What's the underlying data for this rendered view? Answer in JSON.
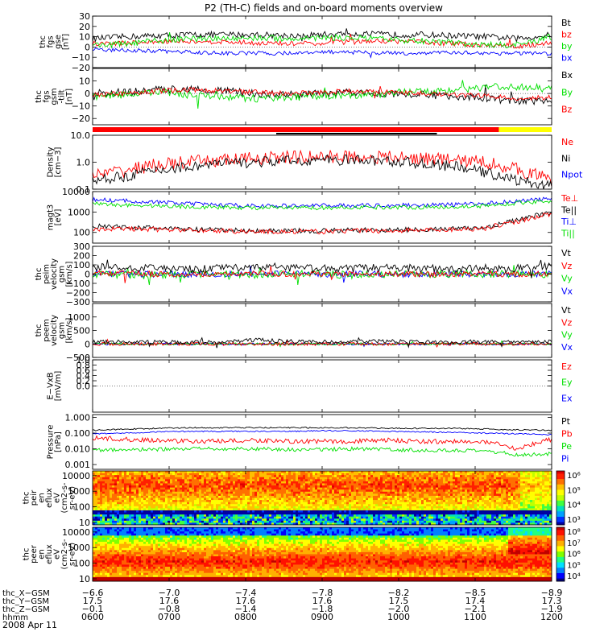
{
  "title": "P2 (TH-C) fields and on-board moments overview",
  "colors": {
    "black": "#000000",
    "red": "#ff0000",
    "green": "#00e000",
    "blue": "#0000ff",
    "yellow": "#ffff00"
  },
  "chart_data": [
    {
      "type": "line",
      "id": "p1",
      "ylabel_lines": [
        "thc",
        "fgs",
        "gse",
        "[nT]"
      ],
      "ylim": [
        -20,
        30
      ],
      "log": false,
      "ticks": [
        30,
        20,
        10,
        0,
        -10,
        -20
      ],
      "ticks_labels": [
        "30",
        "20",
        "10",
        "0",
        "−10",
        "−20"
      ],
      "legend": [
        {
          "name": "Bt",
          "color": "black"
        },
        {
          "name": "bz",
          "color": "red"
        },
        {
          "name": "by",
          "color": "green"
        },
        {
          "name": "bx",
          "color": "blue"
        }
      ],
      "series": [
        {
          "name": "Bt",
          "color": "black",
          "base": [
            8,
            10,
            11,
            12,
            12,
            12,
            11,
            12,
            13,
            12,
            12,
            11,
            10,
            8,
            12
          ],
          "noise": 3
        },
        {
          "name": "bz",
          "color": "red",
          "base": [
            3,
            4,
            5,
            6,
            5,
            4,
            3,
            4,
            5,
            6,
            5,
            3,
            2,
            1,
            4
          ],
          "noise": 2.5
        },
        {
          "name": "by",
          "color": "green",
          "base": [
            2,
            3,
            6,
            8,
            8,
            9,
            8,
            9,
            9,
            7,
            6,
            4,
            2,
            2,
            10
          ],
          "noise": 3
        },
        {
          "name": "bx",
          "color": "blue",
          "base": [
            -3,
            -3,
            -4,
            -5,
            -6,
            -6,
            -6,
            -5,
            -5,
            -6,
            -6,
            -5,
            -6,
            -6,
            -7
          ],
          "noise": 2
        }
      ]
    },
    {
      "type": "line",
      "id": "p2",
      "ylabel_lines": [
        "thc",
        "fgs",
        "gsm",
        "-tilt",
        "[nT]"
      ],
      "ylim": [
        -25,
        20
      ],
      "log": false,
      "ticks": [
        10,
        0,
        -10,
        -20
      ],
      "ticks_labels": [
        "10",
        "0",
        "−10",
        "−20"
      ],
      "legend": [
        {
          "name": "Bx",
          "color": "black"
        },
        {
          "name": "By",
          "color": "green"
        },
        {
          "name": "Bz",
          "color": "red"
        }
      ],
      "series": [
        {
          "name": "Bx",
          "color": "black",
          "base": [
            0,
            1,
            3,
            4,
            2,
            0,
            -1,
            0,
            1,
            0,
            -1,
            -2,
            -4,
            -6,
            -6
          ],
          "noise": 3
        },
        {
          "name": "By",
          "color": "green",
          "base": [
            -2,
            -1,
            1,
            -1,
            -3,
            -4,
            -3,
            -2,
            -1,
            0,
            2,
            3,
            5,
            5,
            6
          ],
          "noise": 3
        },
        {
          "name": "Bz",
          "color": "red",
          "base": [
            -1,
            0,
            2,
            3,
            2,
            1,
            0,
            1,
            2,
            1,
            0,
            -1,
            -2,
            -4,
            -3
          ],
          "noise": 2
        }
      ]
    },
    {
      "type": "line",
      "id": "p3",
      "ylabel_lines": [
        "Density",
        "[cm−3]"
      ],
      "ylim": [
        0.1,
        10
      ],
      "log": true,
      "ticks": [
        10,
        1,
        0.1
      ],
      "ticks_labels": [
        "10.0",
        "1.0",
        "0.1"
      ],
      "legend": [
        {
          "name": "Ne",
          "color": "red"
        },
        {
          "name": "Ni",
          "color": "black"
        },
        {
          "name": "Npot",
          "color": "blue"
        }
      ],
      "series": [
        {
          "name": "Ne",
          "color": "red",
          "base": [
            0.3,
            0.5,
            0.8,
            1.0,
            1.2,
            1.4,
            1.5,
            1.6,
            1.6,
            1.5,
            1.4,
            1.2,
            1.0,
            0.5,
            0.2
          ],
          "noise": 0.25
        },
        {
          "name": "Ni",
          "color": "black",
          "base": [
            0.2,
            0.3,
            0.5,
            0.7,
            0.9,
            1.0,
            1.1,
            1.2,
            1.2,
            1.1,
            0.9,
            0.7,
            0.4,
            0.2,
            0.12
          ],
          "noise": 0.2
        }
      ]
    },
    {
      "type": "line",
      "id": "p4",
      "ylabel_lines": [
        "magt3",
        "[eV]"
      ],
      "ylim": [
        30,
        10000
      ],
      "log": true,
      "ticks": [
        10000,
        1000,
        100
      ],
      "ticks_labels": [
        "10000",
        "1000",
        "100"
      ],
      "legend": [
        {
          "name": "Te⊥",
          "color": "red"
        },
        {
          "name": "Te||",
          "color": "black"
        },
        {
          "name": "Ti⊥",
          "color": "blue"
        },
        {
          "name": "Ti||",
          "color": "green"
        }
      ],
      "series": [
        {
          "name": "Ti⊥",
          "color": "blue",
          "base": [
            4000,
            3500,
            3000,
            2500,
            2200,
            2000,
            2000,
            2100,
            2100,
            2100,
            2200,
            2300,
            2600,
            3500,
            4500
          ],
          "noise": 0.1
        },
        {
          "name": "Ti||",
          "color": "green",
          "base": [
            2500,
            2200,
            2000,
            1800,
            1700,
            1600,
            1600,
            1600,
            1700,
            1700,
            1700,
            1800,
            2000,
            2800,
            3500
          ],
          "noise": 0.1
        },
        {
          "name": "Te||",
          "color": "black",
          "base": [
            200,
            180,
            160,
            140,
            130,
            120,
            120,
            120,
            130,
            130,
            140,
            150,
            170,
            400,
            900
          ],
          "noise": 0.12
        },
        {
          "name": "Te⊥",
          "color": "red",
          "base": [
            150,
            150,
            140,
            130,
            120,
            110,
            110,
            110,
            120,
            120,
            130,
            140,
            160,
            350,
            800
          ],
          "noise": 0.12
        }
      ]
    },
    {
      "type": "line",
      "id": "p5",
      "ylabel_lines": [
        "thc",
        "peim",
        "velocity",
        "gsm",
        "[km/s]"
      ],
      "ylim": [
        -300,
        300
      ],
      "log": false,
      "ticks": [
        300,
        200,
        100,
        0,
        -100,
        -200,
        -300
      ],
      "ticks_labels": [
        "300",
        "200",
        "100",
        "0",
        "−100",
        "−200",
        "−300"
      ],
      "legend": [
        {
          "name": "Vt",
          "color": "black"
        },
        {
          "name": "Vz",
          "color": "red"
        },
        {
          "name": "Vy",
          "color": "green"
        },
        {
          "name": "Vx",
          "color": "blue"
        }
      ],
      "series": [
        {
          "name": "Vx",
          "color": "blue",
          "base": [
            0,
            0,
            0,
            0,
            0,
            0,
            0,
            0,
            0,
            0,
            0,
            0,
            0,
            0,
            0
          ],
          "noise": 35
        },
        {
          "name": "Vy",
          "color": "green",
          "base": [
            0,
            -10,
            -10,
            0,
            0,
            -10,
            0,
            0,
            -10,
            0,
            0,
            0,
            0,
            0,
            0
          ],
          "noise": 40
        },
        {
          "name": "Vz",
          "color": "red",
          "base": [
            10,
            10,
            0,
            0,
            0,
            10,
            0,
            0,
            0,
            0,
            0,
            0,
            0,
            0,
            0
          ],
          "noise": 30
        },
        {
          "name": "Vt",
          "color": "black",
          "base": [
            70,
            80,
            60,
            50,
            60,
            90,
            60,
            60,
            60,
            70,
            60,
            50,
            60,
            60,
            80
          ],
          "noise": 45
        }
      ]
    },
    {
      "type": "line",
      "id": "p6",
      "ylabel_lines": [
        "thc",
        "peem",
        "velocity",
        "gsm",
        "[km/s]"
      ],
      "ylim": [
        -500,
        1500
      ],
      "log": false,
      "ticks": [
        1000,
        500,
        0,
        -500
      ],
      "ticks_labels": [
        "1000",
        "500",
        "0",
        "−500"
      ],
      "legend": [
        {
          "name": "Vt",
          "color": "black"
        },
        {
          "name": "Vz",
          "color": "red"
        },
        {
          "name": "Vy",
          "color": "green"
        },
        {
          "name": "Vx",
          "color": "blue"
        }
      ],
      "series": [
        {
          "name": "Vx",
          "color": "blue",
          "base": [
            0,
            0,
            0,
            0,
            0,
            0,
            0,
            0,
            0,
            0,
            0,
            0,
            0,
            0,
            0
          ],
          "noise": 40
        },
        {
          "name": "Vy",
          "color": "green",
          "base": [
            0,
            0,
            0,
            0,
            0,
            0,
            0,
            0,
            0,
            0,
            0,
            0,
            0,
            0,
            0
          ],
          "noise": 40
        },
        {
          "name": "Vz",
          "color": "red",
          "base": [
            0,
            0,
            0,
            0,
            0,
            0,
            0,
            0,
            0,
            0,
            0,
            0,
            0,
            0,
            0
          ],
          "noise": 60
        },
        {
          "name": "Vt",
          "color": "black",
          "base": [
            80,
            90,
            70,
            60,
            70,
            150,
            100,
            80,
            90,
            100,
            80,
            70,
            90,
            80,
            100
          ],
          "noise": 70
        }
      ]
    },
    {
      "type": "line",
      "id": "p7",
      "ylabel_lines": [
        "E−VxB",
        "[mV/m]"
      ],
      "ylim": [
        -1,
        1
      ],
      "log": false,
      "ticks": [
        1.0,
        0.8,
        0.6,
        0.4,
        0.2,
        0.0
      ],
      "ticks_labels": [
        "1.0",
        "0.8",
        "0.6",
        "0.4",
        "0.2",
        "0.0"
      ],
      "legend": [
        {
          "name": "Ez",
          "color": "red"
        },
        {
          "name": "Ey",
          "color": "green"
        },
        {
          "name": "Ex",
          "color": "blue"
        }
      ],
      "series": []
    },
    {
      "type": "line",
      "id": "p8",
      "ylabel_lines": [
        "Pressure",
        "[nPa]"
      ],
      "ylim": [
        0.0005,
        1.5
      ],
      "log": true,
      "ticks": [
        1,
        0.1,
        0.01,
        0.001
      ],
      "ticks_labels": [
        "1.000",
        "0.100",
        "0.010",
        "0.001"
      ],
      "legend": [
        {
          "name": "Pt",
          "color": "black"
        },
        {
          "name": "Pb",
          "color": "red"
        },
        {
          "name": "Pe",
          "color": "green"
        },
        {
          "name": "Pi",
          "color": "blue"
        }
      ],
      "series": [
        {
          "name": "Pt",
          "color": "black",
          "base": [
            0.15,
            0.18,
            0.2,
            0.22,
            0.22,
            0.22,
            0.22,
            0.22,
            0.22,
            0.2,
            0.2,
            0.2,
            0.18,
            0.16,
            0.15
          ],
          "noise": 0.04
        },
        {
          "name": "Pi",
          "color": "blue",
          "base": [
            0.09,
            0.1,
            0.12,
            0.13,
            0.13,
            0.13,
            0.13,
            0.14,
            0.14,
            0.13,
            0.12,
            0.11,
            0.1,
            0.09,
            0.08
          ],
          "noise": 0.04
        },
        {
          "name": "Pb",
          "color": "red",
          "base": [
            0.05,
            0.04,
            0.035,
            0.03,
            0.03,
            0.035,
            0.03,
            0.03,
            0.03,
            0.035,
            0.03,
            0.03,
            0.025,
            0.008,
            0.04
          ],
          "noise": 0.15
        },
        {
          "name": "Pe",
          "color": "green",
          "base": [
            0.008,
            0.009,
            0.009,
            0.01,
            0.01,
            0.01,
            0.009,
            0.009,
            0.01,
            0.009,
            0.008,
            0.008,
            0.007,
            0.004,
            0.005
          ],
          "noise": 0.12
        }
      ]
    },
    {
      "type": "heatmap",
      "id": "p9",
      "ylabel_lines": [
        "thc",
        "peir",
        "en",
        "eflux",
        "eV",
        "(cm2-s-",
        "sr-eV)"
      ],
      "ticks": [
        10000,
        1000,
        100,
        10
      ],
      "ticks_labels": [
        "10000",
        "1000",
        "100",
        "10"
      ],
      "ylim": [
        7,
        20000
      ],
      "colorbar_labels": [
        "10⁶",
        "10⁵",
        "10⁴",
        "10³"
      ],
      "colorbar_exponents": [
        6,
        5,
        4,
        3
      ]
    },
    {
      "type": "heatmap",
      "id": "p10",
      "ylabel_lines": [
        "thc",
        "peer",
        "en",
        "eflux",
        "eV",
        "(cm2-s-",
        "sr-eV)"
      ],
      "ticks": [
        10000,
        1000,
        100,
        10
      ],
      "ticks_labels": [
        "10000",
        "1000",
        "100",
        "10"
      ],
      "ylim": [
        7,
        20000
      ],
      "colorbar_labels": [
        "10⁸",
        "10⁷",
        "10⁶",
        "10⁵",
        "10⁴"
      ],
      "colorbar_exponents": [
        8,
        7,
        6,
        5,
        4
      ]
    }
  ],
  "x_axis": {
    "rows": [
      {
        "label": "thc_X−GSM",
        "values": [
          "−6.6",
          "−7.0",
          "−7.4",
          "−7.8",
          "−8.2",
          "−8.5",
          "−8.9"
        ]
      },
      {
        "label": "thc_Y−GSM",
        "values": [
          "17.5",
          "17.6",
          "17.6",
          "17.6",
          "17.5",
          "17.4",
          "17.3"
        ]
      },
      {
        "label": "thc_Z−GSM",
        "values": [
          "−0.1",
          "−0.8",
          "−1.4",
          "−1.8",
          "−2.0",
          "−2.1",
          "−1.9"
        ]
      },
      {
        "label": "hhmm",
        "values": [
          "0600",
          "0700",
          "0800",
          "0900",
          "1000",
          "1100",
          "1200"
        ]
      }
    ],
    "date": "2008 Apr 11"
  }
}
